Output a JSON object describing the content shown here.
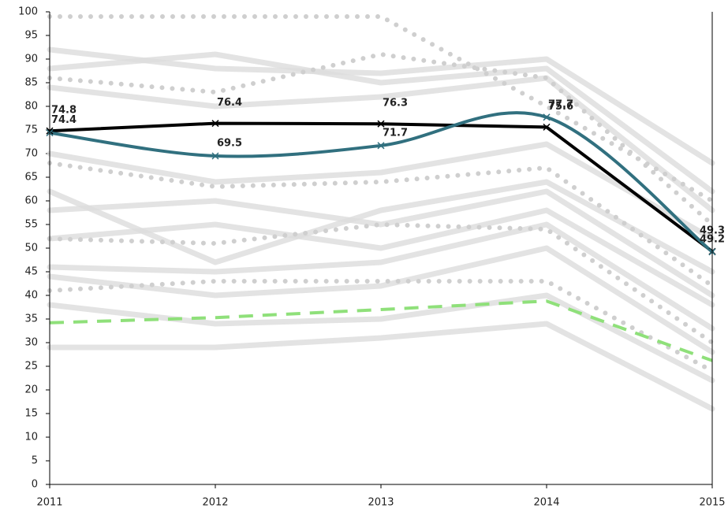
{
  "chart_data": {
    "type": "line",
    "categories": [
      "2011",
      "2012",
      "2013",
      "2014",
      "2015"
    ],
    "ylim": [
      0,
      100
    ],
    "yticks": [
      0,
      5,
      10,
      15,
      20,
      25,
      30,
      35,
      40,
      45,
      50,
      55,
      60,
      65,
      70,
      75,
      80,
      85,
      90,
      95,
      100
    ],
    "series": [
      {
        "color": "#dcdcdc",
        "style": "solid",
        "values": [
          92,
          88,
          87,
          90,
          68
        ]
      },
      {
        "color": "#dcdcdc",
        "style": "solid",
        "values": [
          88,
          91,
          85,
          88,
          62
        ]
      },
      {
        "color": "#dcdcdc",
        "style": "solid",
        "values": [
          84,
          80,
          82,
          86,
          58
        ]
      },
      {
        "color": "#dcdcdc",
        "style": "solid",
        "values": [
          70,
          64,
          66,
          72,
          52
        ]
      },
      {
        "color": "#dcdcdc",
        "style": "solid",
        "values": [
          62,
          47,
          58,
          64,
          45
        ]
      },
      {
        "color": "#dcdcdc",
        "style": "solid",
        "values": [
          58,
          60,
          55,
          62,
          40
        ]
      },
      {
        "color": "#dcdcdc",
        "style": "solid",
        "values": [
          52,
          55,
          50,
          58,
          38
        ]
      },
      {
        "color": "#dcdcdc",
        "style": "solid",
        "values": [
          46,
          45,
          47,
          55,
          33
        ]
      },
      {
        "color": "#dcdcdc",
        "style": "solid",
        "values": [
          44,
          40,
          42,
          50,
          28
        ]
      },
      {
        "color": "#dcdcdc",
        "style": "solid",
        "values": [
          38,
          34,
          35,
          40,
          22
        ]
      },
      {
        "color": "#dcdcdc",
        "style": "solid",
        "values": [
          29,
          29,
          31,
          34,
          16
        ]
      },
      {
        "color": "#cfcfcf",
        "style": "dotted",
        "values": [
          99,
          99,
          99,
          80,
          60
        ]
      },
      {
        "color": "#cfcfcf",
        "style": "dotted",
        "values": [
          86,
          83,
          91,
          86,
          55
        ]
      },
      {
        "color": "#cfcfcf",
        "style": "dotted",
        "values": [
          68,
          63,
          64,
          67,
          42
        ]
      },
      {
        "color": "#cfcfcf",
        "style": "dotted",
        "values": [
          52,
          51,
          55,
          54,
          30
        ]
      },
      {
        "color": "#cfcfcf",
        "style": "dotted",
        "values": [
          41,
          43,
          43,
          43,
          24
        ]
      },
      {
        "color": "#000000",
        "style": "solid",
        "marker": "x",
        "label_offset": 26,
        "values": [
          74.8,
          76.4,
          76.3,
          75.6,
          49.3
        ]
      },
      {
        "color": "#31707f",
        "style": "solid",
        "smooth": true,
        "marker": "x",
        "label_offset": 16,
        "values": [
          74.4,
          69.5,
          71.7,
          77.7,
          49.2
        ]
      },
      {
        "color": "#8fe07a",
        "style": "dashed",
        "values": [
          34.2,
          35.3,
          37,
          38.8,
          26.2
        ]
      }
    ]
  }
}
